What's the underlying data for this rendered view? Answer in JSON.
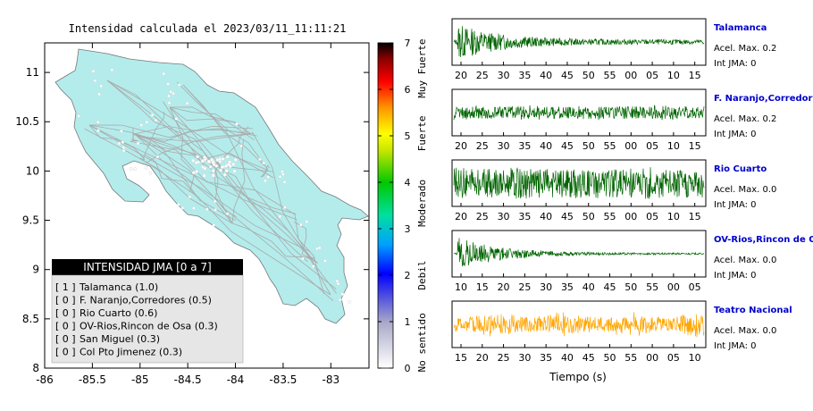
{
  "map": {
    "title": "Intensidad calculada el 2023/03/11_11:11:21",
    "x_ticks": [
      "-86",
      "-85.5",
      "-85",
      "-84.5",
      "-84",
      "-83.5",
      "-83"
    ],
    "y_ticks": [
      "11",
      "10.5",
      "10",
      "9.5",
      "9",
      "8.5",
      "8"
    ],
    "xlim": [
      -86,
      -82.6
    ],
    "ylim": [
      8,
      11.3
    ],
    "land_color": "#b4ecec",
    "road_color": "#aaaaaa"
  },
  "legend": {
    "header": "INTENSIDAD JMA [0 a 7]",
    "entries": [
      {
        "badge": "[ 1 ]",
        "text": "Talamanca (1.0)"
      },
      {
        "badge": "[ 0 ]",
        "text": "F. Naranjo,Corredores (0.5)"
      },
      {
        "badge": "[ 0 ]",
        "text": "Rio Cuarto (0.6)"
      },
      {
        "badge": "[ 0 ]",
        "text": "OV-Rios,Rincon de Osa (0.3)"
      },
      {
        "badge": "[ 0 ]",
        "text": "San Miguel (0.3)"
      },
      {
        "badge": "[ 0 ]",
        "text": "Col Pto Jimenez (0.3)"
      }
    ]
  },
  "colorbar": {
    "ticks": [
      "0",
      "1",
      "2",
      "3",
      "4",
      "5",
      "6",
      "7"
    ],
    "labels": [
      "No sentido",
      "Debil",
      "Moderado",
      "Fuerte",
      "Muy Fuerte"
    ],
    "range": [
      0,
      7
    ]
  },
  "stations": [
    {
      "name": "Talamanca",
      "acel": "Acel. Max. 0.2",
      "int": "Int JMA: 0",
      "ticks": [
        "20",
        "25",
        "30",
        "35",
        "40",
        "45",
        "50",
        "55",
        "00",
        "05",
        "10",
        "15"
      ],
      "color": "#006400",
      "envelope": "decay",
      "amp": 0.9,
      "noise": 0.12
    },
    {
      "name": "F. Naranjo,Corredores",
      "acel": "Acel. Max. 0.2",
      "int": "Int JMA: 0",
      "ticks": [
        "20",
        "25",
        "30",
        "35",
        "40",
        "45",
        "50",
        "55",
        "00",
        "05",
        "10",
        "15"
      ],
      "color": "#006400",
      "envelope": "flat",
      "amp": 0.38,
      "noise": 0.3
    },
    {
      "name": "Rio Cuarto",
      "acel": "Acel. Max. 0.0",
      "int": "Int JMA: 0",
      "ticks": [
        "20",
        "25",
        "30",
        "35",
        "40",
        "45",
        "50",
        "55",
        "00",
        "05",
        "10",
        "15"
      ],
      "color": "#006400",
      "envelope": "flat",
      "amp": 0.8,
      "noise": 0.7
    },
    {
      "name": "OV-Rios,Rincon de Osa",
      "acel": "Acel. Max. 0.0",
      "int": "Int JMA: 0",
      "ticks": [
        "10",
        "15",
        "20",
        "25",
        "30",
        "35",
        "40",
        "45",
        "50",
        "55",
        "00",
        "05"
      ],
      "color": "#006400",
      "envelope": "decay",
      "amp": 0.85,
      "noise": 0.04
    },
    {
      "name": "Teatro Nacional",
      "acel": "Acel. Max. 0.0",
      "int": "Int JMA: 0",
      "ticks": [
        "15",
        "20",
        "25",
        "30",
        "35",
        "40",
        "45",
        "50",
        "55",
        "00",
        "05",
        "10"
      ],
      "color": "#ffa500",
      "envelope": "flat",
      "amp": 0.7,
      "noise": 0.35
    }
  ],
  "time_label": "Tiempo (s)"
}
